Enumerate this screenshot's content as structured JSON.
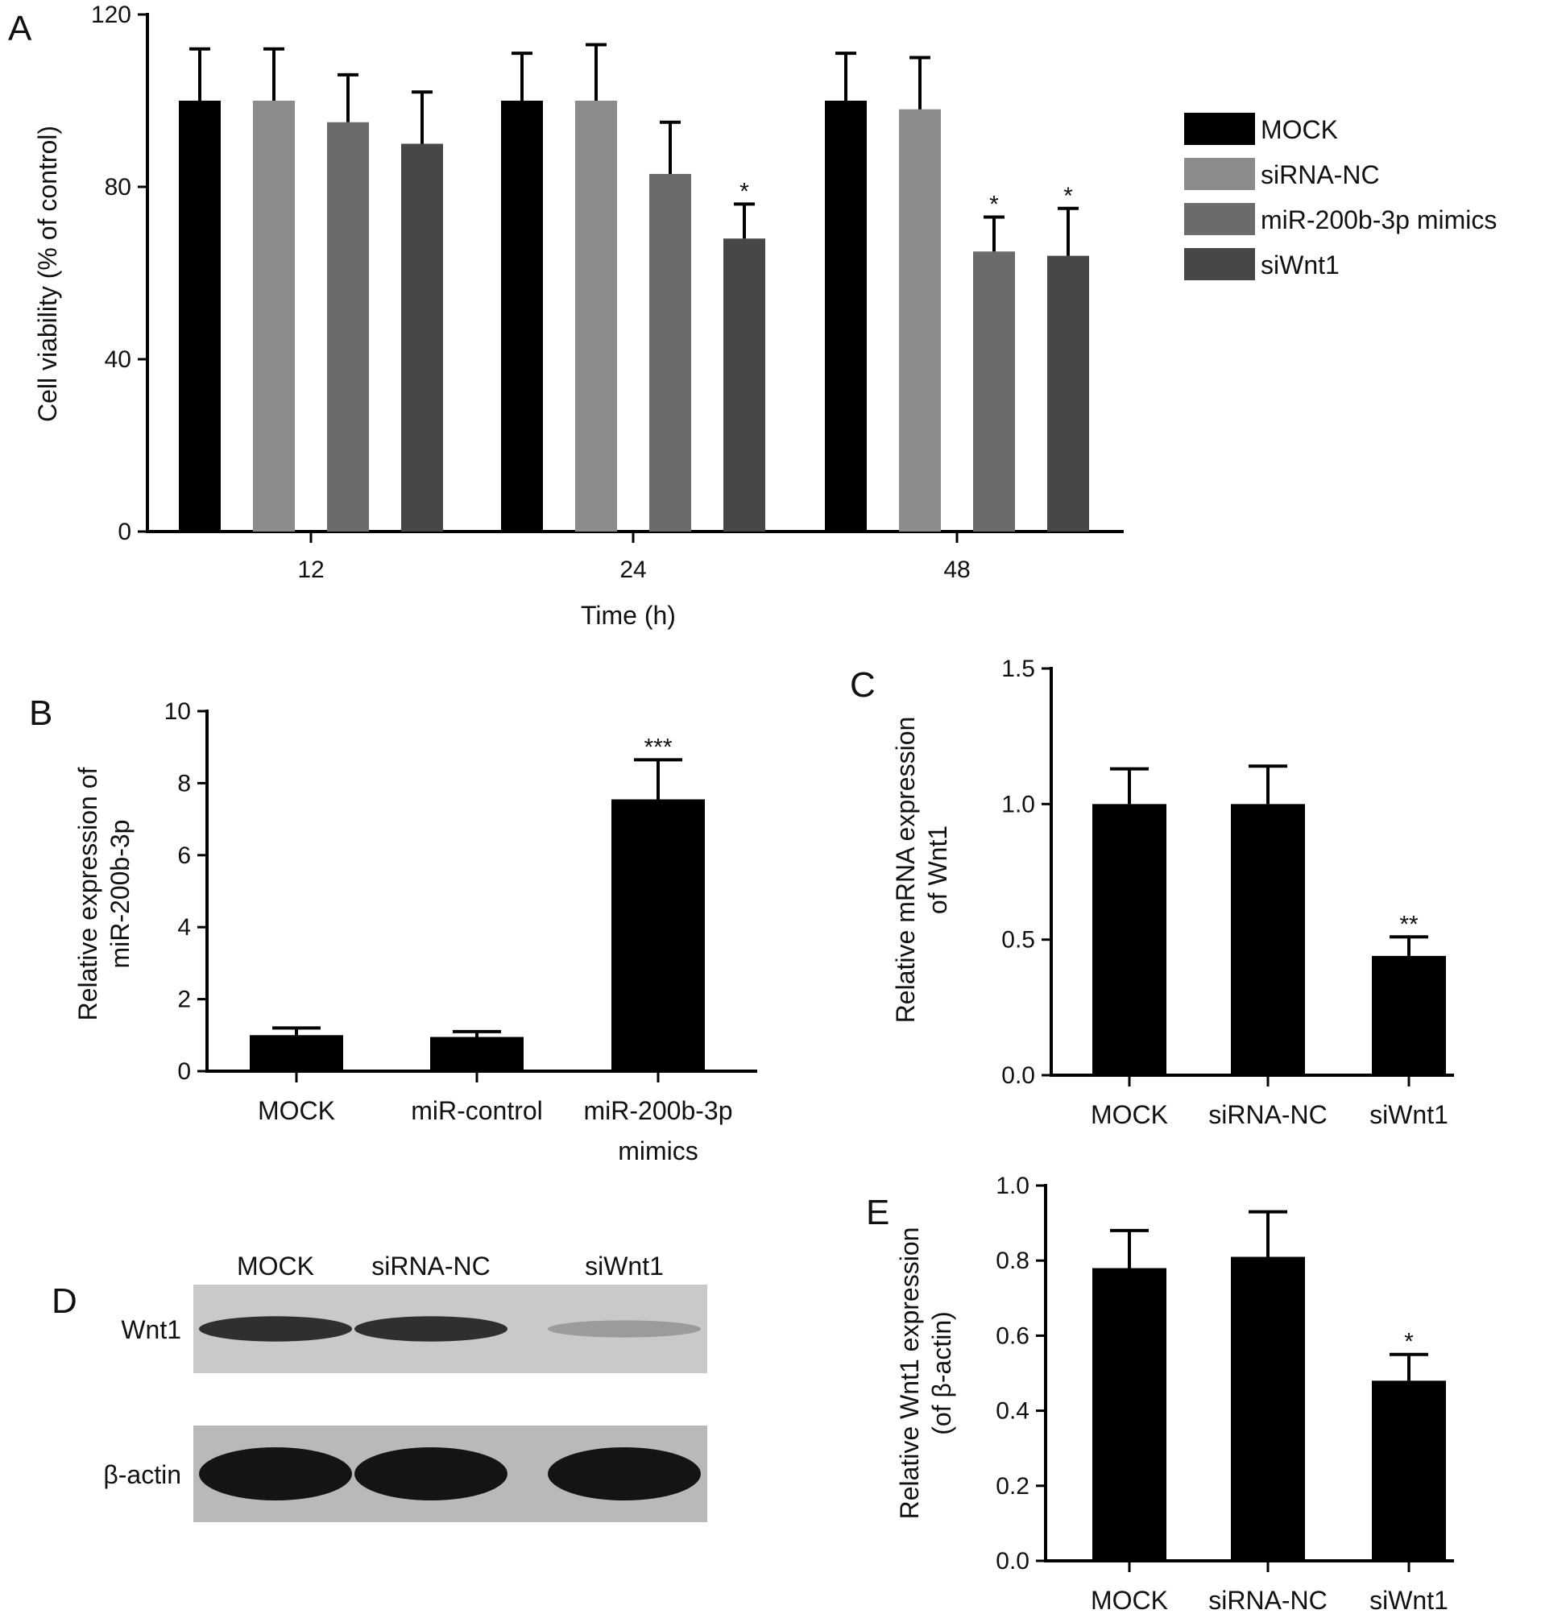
{
  "panels": {
    "A": "A",
    "B": "B",
    "C": "C",
    "D": "D",
    "E": "E"
  },
  "colors": {
    "MOCK": "#000000",
    "siRNA-NC": "#8c8c8c",
    "miR-200b-3p mimics": "#6b6b6b",
    "siWnt1": "#474747",
    "black": "#000000"
  },
  "chart_data": [
    {
      "panel": "A",
      "type": "bar",
      "xlabel": "Time (h)",
      "ylabel": "Cell viability (% of control)",
      "categories": [
        "12",
        "24",
        "48"
      ],
      "ylim": [
        0,
        120
      ],
      "yticks": [
        0,
        40,
        80,
        120
      ],
      "legend_position": "right",
      "series": [
        {
          "name": "MOCK",
          "values": [
            100,
            100,
            100
          ],
          "errors": [
            12,
            11,
            11
          ],
          "sig": [
            "",
            "",
            ""
          ]
        },
        {
          "name": "siRNA-NC",
          "values": [
            100,
            100,
            98
          ],
          "errors": [
            12,
            13,
            12
          ],
          "sig": [
            "",
            "",
            ""
          ]
        },
        {
          "name": "miR-200b-3p mimics",
          "values": [
            95,
            83,
            65
          ],
          "errors": [
            11,
            12,
            8
          ],
          "sig": [
            "",
            "",
            "*"
          ]
        },
        {
          "name": "siWnt1",
          "values": [
            90,
            68,
            64
          ],
          "errors": [
            12,
            8,
            11
          ],
          "sig": [
            "",
            "*",
            "*"
          ]
        }
      ]
    },
    {
      "panel": "B",
      "type": "bar",
      "xlabel": "",
      "ylabel_lines": [
        "Relative expression of",
        "miR-200b-3p"
      ],
      "categories": [
        [
          "MOCK"
        ],
        [
          "miR-control"
        ],
        [
          "miR-200b-3p",
          "mimics"
        ]
      ],
      "values": [
        1.0,
        0.95,
        7.55
      ],
      "errors": [
        0.2,
        0.15,
        1.1
      ],
      "sig": [
        "",
        "",
        "***"
      ],
      "ylim": [
        0,
        10
      ],
      "yticks": [
        0,
        2,
        4,
        6,
        8,
        10
      ]
    },
    {
      "panel": "C",
      "type": "bar",
      "xlabel": "",
      "ylabel_lines": [
        "Relative mRNA expression",
        "of Wnt1"
      ],
      "categories": [
        [
          "MOCK"
        ],
        [
          "siRNA-NC"
        ],
        [
          "siWnt1"
        ]
      ],
      "values": [
        1.0,
        1.0,
        0.44
      ],
      "errors": [
        0.13,
        0.14,
        0.07
      ],
      "sig": [
        "",
        "",
        "**"
      ],
      "ylim": [
        0,
        1.5
      ],
      "yticks": [
        "0.0",
        "0.5",
        "1.0",
        "1.5"
      ]
    },
    {
      "panel": "E",
      "type": "bar",
      "xlabel": "",
      "ylabel_lines": [
        "Relative Wnt1 expression",
        "(of β-actin)"
      ],
      "categories": [
        [
          "MOCK"
        ],
        [
          "siRNA-NC"
        ],
        [
          "siWnt1"
        ]
      ],
      "values": [
        0.78,
        0.81,
        0.48
      ],
      "errors": [
        0.1,
        0.12,
        0.07
      ],
      "sig": [
        "",
        "",
        "*"
      ],
      "ylim": [
        0,
        1.0
      ],
      "yticks": [
        "0.0",
        "0.2",
        "0.4",
        "0.6",
        "0.8",
        "1.0"
      ]
    }
  ],
  "blot": {
    "lanes": [
      "MOCK",
      "siRNA-NC",
      "siWnt1"
    ],
    "rows": [
      {
        "label": "Wnt1",
        "intensity": [
          0.85,
          0.85,
          0.25
        ]
      },
      {
        "label": "β-actin",
        "intensity": [
          1.0,
          1.0,
          1.0
        ]
      }
    ]
  }
}
